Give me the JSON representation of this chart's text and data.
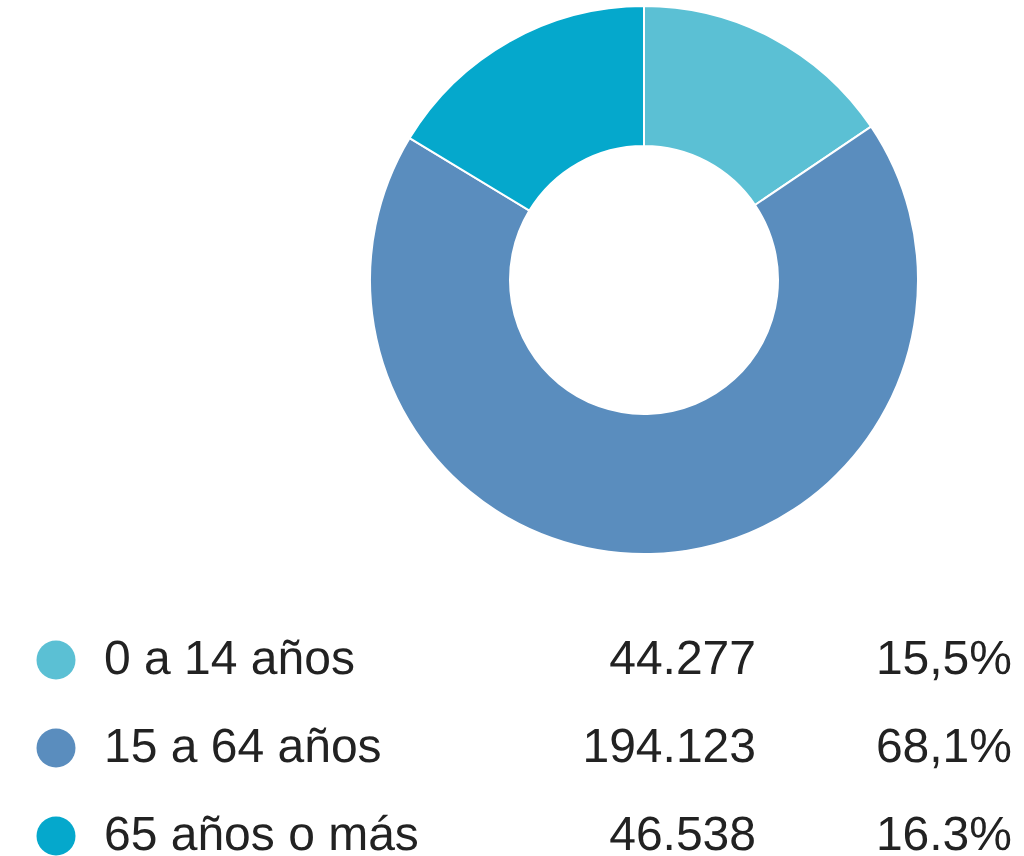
{
  "chart_data": {
    "type": "donut",
    "categories": [
      "0 a 14 años",
      "15 a 64 años",
      "65 años o más"
    ],
    "values": [
      44277,
      194123,
      46538
    ],
    "value_labels": [
      "44.277",
      "194.123",
      "46.538"
    ],
    "annotations": [
      "15,5%",
      "68,1%",
      "16.3%"
    ],
    "colors": [
      "#5bc0d4",
      "#5a8dbe",
      "#05a8cc"
    ],
    "legend": "bottom"
  }
}
